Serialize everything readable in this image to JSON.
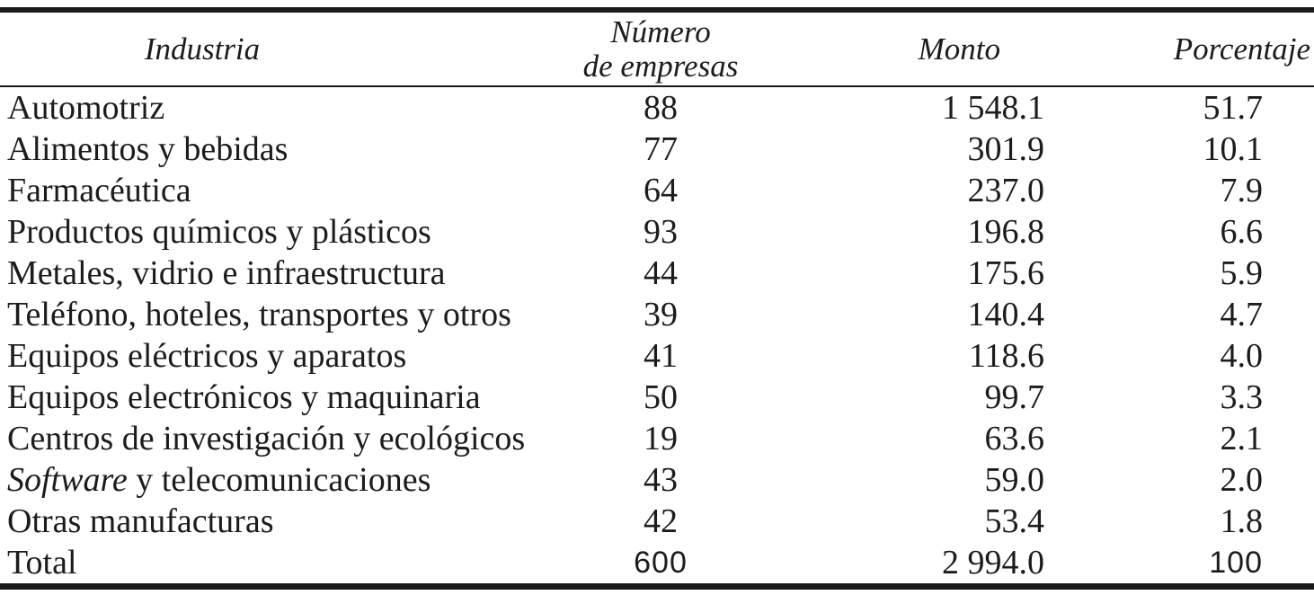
{
  "table": {
    "text_color": "#1c1c1c",
    "rule_color": "#1a1a1a",
    "columns": {
      "industry": {
        "label": "Industria"
      },
      "companies": {
        "label_line1": "Número",
        "label_line2": "de empresas"
      },
      "amount": {
        "label": "Monto"
      },
      "percentage": {
        "label": "Porcentaje"
      }
    },
    "rows": [
      {
        "industry": "Automotriz",
        "companies": "88",
        "amount": "1 548.1",
        "percentage": "51.7"
      },
      {
        "industry": "Alimentos y bebidas",
        "companies": "77",
        "amount": "301.9",
        "percentage": "10.1"
      },
      {
        "industry": "Farmacéutica",
        "companies": "64",
        "amount": "237.0",
        "percentage": "7.9"
      },
      {
        "industry": "Productos químicos y plásticos",
        "companies": "93",
        "amount": "196.8",
        "percentage": "6.6"
      },
      {
        "industry": "Metales, vidrio e infraestructura",
        "companies": "44",
        "amount": "175.6",
        "percentage": "5.9"
      },
      {
        "industry": "Teléfono, hoteles, transportes y otros",
        "companies": "39",
        "amount": "140.4",
        "percentage": "4.7"
      },
      {
        "industry": "Equipos eléctricos y aparatos",
        "companies": "41",
        "amount": "118.6",
        "percentage": "4.0"
      },
      {
        "industry": "Equipos electrónicos y maquinaria",
        "companies": "50",
        "amount": "99.7",
        "percentage": "3.3"
      },
      {
        "industry": "Centros de investigación y ecológicos",
        "companies": "19",
        "amount": "63.6",
        "percentage": "2.1"
      },
      {
        "industry": "Software y telecomunicaciones",
        "industry_italic_prefix": "Software",
        "companies": "43",
        "amount": "59.0",
        "percentage": "2.0"
      },
      {
        "industry": "Otras manufacturas",
        "companies": "42",
        "amount": "53.4",
        "percentage": "1.8"
      },
      {
        "industry": "Total",
        "companies": "600",
        "amount": "2 994.0",
        "percentage": "100",
        "is_total": true
      }
    ]
  }
}
